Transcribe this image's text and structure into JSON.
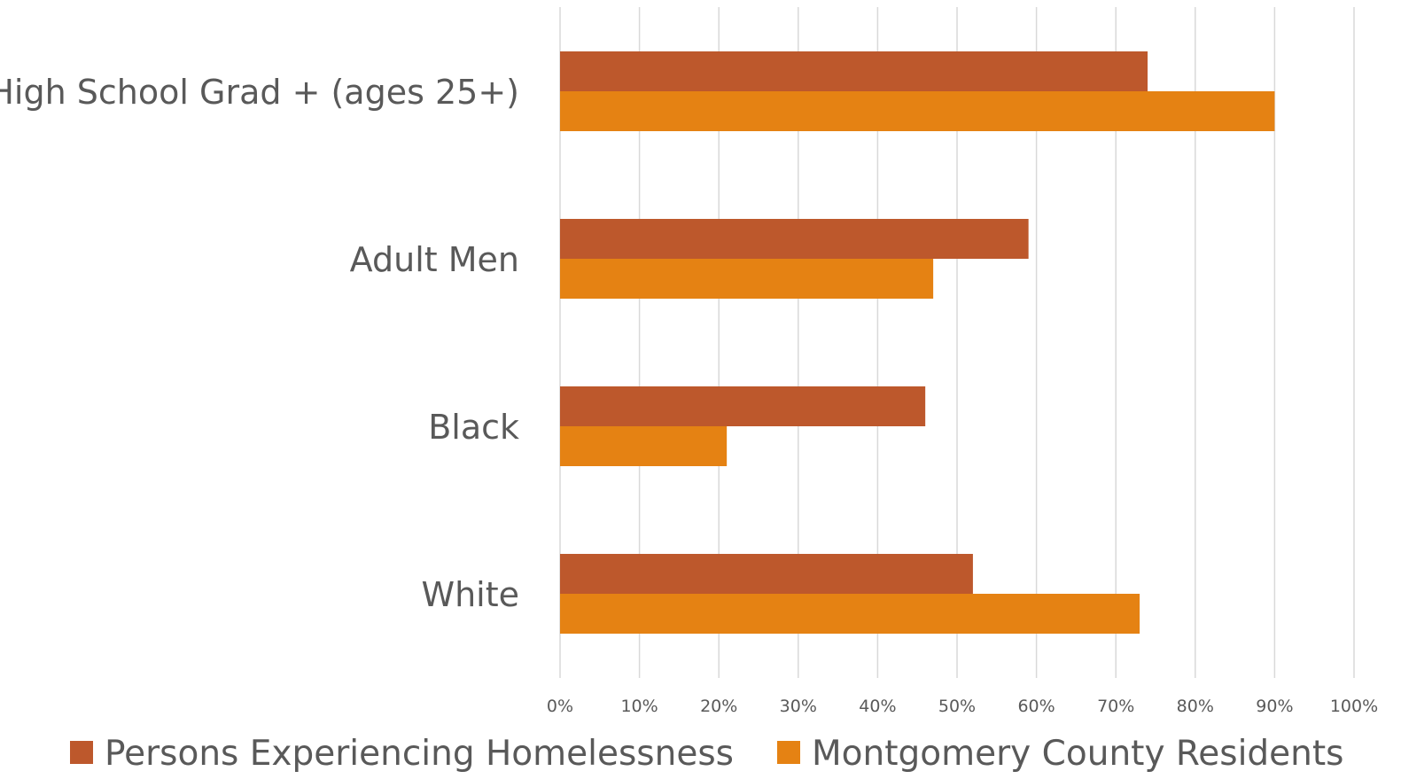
{
  "chart_data": {
    "type": "bar",
    "orientation": "horizontal",
    "categories": [
      "High School Grad + (ages 25+)",
      "Adult Men",
      "Black",
      "White"
    ],
    "series": [
      {
        "name": "Persons Experiencing Homelessness",
        "color": "#bd582c",
        "values": [
          74,
          59,
          46,
          52
        ]
      },
      {
        "name": "Montgomery County Residents",
        "color": "#e58213",
        "values": [
          90,
          47,
          21,
          73
        ]
      }
    ],
    "x_ticks": [
      "0%",
      "10%",
      "20%",
      "30%",
      "40%",
      "50%",
      "60%",
      "70%",
      "80%",
      "90%",
      "100%"
    ],
    "xlim": [
      0,
      100
    ],
    "x_unit": "%",
    "grid": true,
    "legend_position": "bottom",
    "title": "",
    "xlabel": "",
    "ylabel": ""
  }
}
